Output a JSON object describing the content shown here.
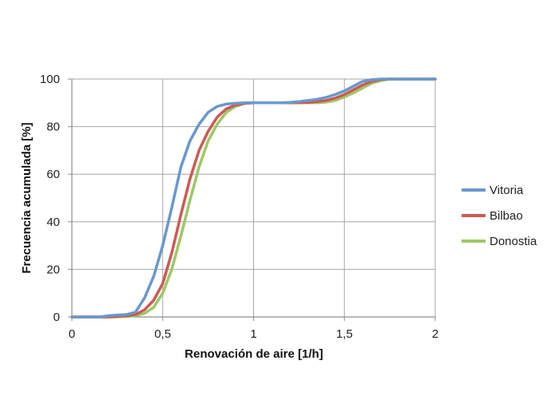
{
  "chart_data": {
    "type": "line",
    "title": "",
    "xlabel": "Renovación de aire [1/h]",
    "ylabel": "Frecuencia acumulada [%]",
    "xlim": [
      0,
      2
    ],
    "ylim": [
      0,
      100
    ],
    "xticks": [
      0,
      0.5,
      1,
      1.5,
      2
    ],
    "xtick_labels": [
      "0",
      "0,5",
      "1",
      "1,5",
      "2"
    ],
    "yticks": [
      0,
      20,
      40,
      60,
      80,
      100
    ],
    "ytick_labels": [
      "0",
      "20",
      "40",
      "60",
      "80",
      "100"
    ],
    "grid": true,
    "legend_position": "right",
    "x": [
      0,
      0.05,
      0.1,
      0.15,
      0.2,
      0.25,
      0.3,
      0.35,
      0.4,
      0.45,
      0.5,
      0.55,
      0.6,
      0.65,
      0.7,
      0.75,
      0.8,
      0.85,
      0.9,
      0.95,
      1.0,
      1.05,
      1.1,
      1.15,
      1.2,
      1.25,
      1.3,
      1.35,
      1.4,
      1.45,
      1.5,
      1.55,
      1.6,
      1.65,
      1.7,
      1.75,
      1.8,
      1.85,
      1.9,
      1.95,
      2.0
    ],
    "series": [
      {
        "name": "Vitoria",
        "color": "#6a98cc",
        "values": [
          0,
          0,
          0,
          0,
          0.5,
          0.8,
          1,
          2,
          8,
          17,
          30,
          46,
          63,
          74,
          81,
          86,
          88.5,
          89.5,
          89.8,
          90,
          90,
          90,
          90,
          90,
          90.2,
          90.5,
          91,
          91.5,
          92.3,
          93.5,
          95,
          97,
          99,
          99.7,
          100,
          100,
          100,
          100,
          100,
          100,
          100
        ]
      },
      {
        "name": "Bilbao",
        "color": "#cc5a55",
        "values": [
          0,
          0,
          0,
          0,
          0,
          0.3,
          0.5,
          1,
          3,
          7,
          14,
          27,
          43,
          58,
          70,
          78,
          84,
          87.5,
          89,
          89.8,
          90,
          90,
          90,
          90,
          90,
          90,
          90.2,
          90.5,
          91,
          92,
          93.5,
          95.5,
          97.5,
          99,
          99.8,
          100,
          100,
          100,
          100,
          100,
          100
        ]
      },
      {
        "name": "Donostia",
        "color": "#9dc865",
        "values": [
          0,
          0,
          0,
          0,
          0,
          0,
          0.2,
          0.5,
          1.5,
          4,
          10,
          20,
          34,
          49,
          63,
          74,
          81,
          86,
          88.5,
          89.7,
          90,
          90,
          90,
          90,
          90,
          90,
          90,
          90,
          90.3,
          91,
          92.5,
          94.2,
          96.2,
          98.2,
          99.3,
          100,
          100,
          100,
          100,
          100,
          100
        ]
      }
    ]
  }
}
